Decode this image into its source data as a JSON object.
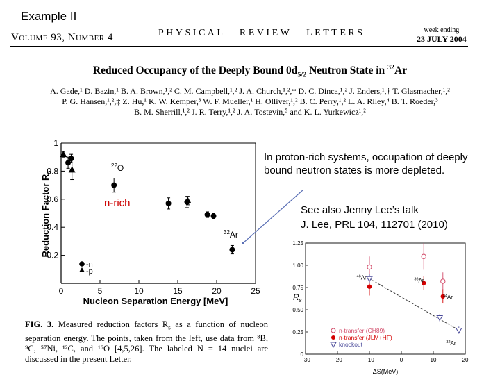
{
  "slide": {
    "title": "Example II",
    "callout_main": "In  proton-rich systems, occupation of deeply bound neutron states is more depleted.",
    "callout_ref_line1": "See also Jenny Lee’s talk",
    "callout_ref_line2": "J. Lee, PRL 104, 112701 (2010)"
  },
  "journal": {
    "volume": "Volume 93, Number 4",
    "name": "PHYSICAL   REVIEW   LETTERS",
    "week_label": "week ending",
    "date": "23 JULY 2004"
  },
  "paper": {
    "title_pre": "Reduced Occupancy of the Deeply Bound 0",
    "title_sub": "d",
    "title_subscript": "5/2",
    "title_post": " Neutron State in ",
    "title_mass": "32",
    "title_element": "Ar",
    "authors_line1": "A. Gade,¹ D. Bazin,¹ B. A. Brown,¹,² C. M. Campbell,¹,² J. A. Church,¹,²,* D. C. Dinca,¹,² J. Enders,¹,† T. Glasmacher,¹,²",
    "authors_line2": "P. G. Hansen,¹,²,‡ Z. Hu,¹ K. W. Kemper,³ W. F. Mueller,¹ H. Olliver,¹,² B. C. Perry,¹,² L. A. Riley,⁴ B. T. Roeder,³",
    "authors_line3": "B. M. Sherrill,¹,² J. R. Terry,¹,² J. A. Tostevin,⁵ and K. L. Yurkewicz¹,²"
  },
  "caption": {
    "lead": "FIG. 3.",
    "text": " Measured reduction factors R",
    "text_s": "s",
    "text2": " as a function of nucleon separation energy. The points, taken from the left, use data from ⁸B, ⁹C, ⁵⁷Ni, ¹²C, and ¹⁶O [4,5,26]. The labeled N = 14 nuclei are discussed in the present Letter."
  },
  "chart_data": [
    {
      "type": "scatter",
      "xlabel": "Nucleon Separation Energy  [MeV]",
      "ylabel": "Reduction Factor R",
      "ylabel_sub": "s",
      "xlim": [
        0,
        25
      ],
      "ylim": [
        0,
        1
      ],
      "xticks": [
        "0",
        "5",
        "10",
        "15",
        "20",
        "25"
      ],
      "yticks": [
        "0.2",
        "0.4",
        "0.6",
        "0.8",
        "1"
      ],
      "legend": [
        "-n",
        "-p"
      ],
      "annotations": {
        "o22_mass": "22",
        "o22_element": "O",
        "ar32_mass": "32",
        "ar32_element": "Ar",
        "region_label": "n-rich"
      },
      "annotation_color": "#cc0000",
      "series": [
        {
          "name": "-n",
          "marker": "circle",
          "points": [
            {
              "x": 0.9,
              "y": 0.86,
              "err": 0.04
            },
            {
              "x": 1.3,
              "y": 0.89,
              "err": 0.03
            },
            {
              "x": 6.8,
              "y": 0.7,
              "err": 0.05
            },
            {
              "x": 13.8,
              "y": 0.57,
              "err": 0.04
            },
            {
              "x": 16.2,
              "y": 0.58,
              "err": 0.04
            },
            {
              "x": 18.8,
              "y": 0.49,
              "err": 0.02
            },
            {
              "x": 19.6,
              "y": 0.48,
              "err": 0.02
            },
            {
              "x": 22.0,
              "y": 0.24,
              "err": 0.03
            }
          ]
        },
        {
          "name": "-p",
          "marker": "triangle",
          "points": [
            {
              "x": 0.3,
              "y": 0.92,
              "err": 0.02
            },
            {
              "x": 1.4,
              "y": 0.81,
              "err": 0.07
            },
            {
              "x": 16.3,
              "y": 0.59,
              "err": 0.03
            }
          ]
        }
      ]
    },
    {
      "type": "scatter",
      "xlabel": "ΔS(MeV)",
      "ylabel": "R",
      "ylabel_sub": "s",
      "xlim": [
        -30,
        20
      ],
      "ylim": [
        0,
        1.25
      ],
      "xticks": [
        "−30",
        "−20",
        "−10",
        "0",
        "10",
        "20"
      ],
      "yticks": [
        "0",
        "0.25",
        "0.50",
        "0.75",
        "1.00",
        "1.25"
      ],
      "legend": [
        "n-transfer (CH89)",
        "n-transfer (JLM+HF)",
        "knockout"
      ],
      "labels": [
        {
          "text": "46Ar",
          "x": -14,
          "y": 0.84
        },
        {
          "text": "36Ar",
          "x": 4,
          "y": 0.81
        },
        {
          "text": "34Ar",
          "x": 13,
          "y": 0.62
        },
        {
          "text": "32Ar",
          "x": 14,
          "y": 0.1
        }
      ],
      "colors": {
        "ch89": "#d24c6a",
        "jlm": "#d40000",
        "knockout": "#4a4a9a",
        "trend": "#333333"
      },
      "series": [
        {
          "name": "n-transfer (CH89)",
          "marker": "open-circle",
          "points": [
            {
              "x": -10,
              "y": 0.98,
              "err": 0.12
            },
            {
              "x": 7,
              "y": 1.1,
              "err": 0.15
            },
            {
              "x": 13,
              "y": 0.82,
              "err": 0.1
            }
          ]
        },
        {
          "name": "n-transfer (JLM+HF)",
          "marker": "filled-circle",
          "points": [
            {
              "x": -10,
              "y": 0.76,
              "err": 0.1
            },
            {
              "x": 7,
              "y": 0.8,
              "err": 0.08
            },
            {
              "x": 13,
              "y": 0.65,
              "err": 0.08
            }
          ]
        },
        {
          "name": "knockout",
          "marker": "open-triangle",
          "points": [
            {
              "x": -10,
              "y": 0.85,
              "err": 0.05
            },
            {
              "x": 12,
              "y": 0.41,
              "err": 0.04
            },
            {
              "x": 18,
              "y": 0.27,
              "err": 0.04
            }
          ]
        }
      ]
    }
  ]
}
